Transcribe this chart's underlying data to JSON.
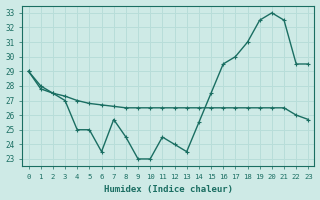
{
  "xlabel": "Humidex (Indice chaleur)",
  "background_color": "#ceeae6",
  "line_color": "#1a6e62",
  "grid_color": "#b8ddd9",
  "xlim": [
    -0.5,
    23.5
  ],
  "ylim": [
    22.5,
    33.5
  ],
  "yticks": [
    23,
    24,
    25,
    26,
    27,
    28,
    29,
    30,
    31,
    32,
    33
  ],
  "xticks": [
    0,
    1,
    2,
    3,
    4,
    5,
    6,
    7,
    8,
    9,
    10,
    11,
    12,
    13,
    14,
    15,
    16,
    17,
    18,
    19,
    20,
    21,
    22,
    23
  ],
  "series1": {
    "x": [
      0,
      1,
      2,
      3,
      4,
      5,
      6,
      7,
      8,
      9,
      10,
      11,
      12,
      13,
      14,
      15,
      16,
      17,
      18,
      19,
      20,
      21,
      22,
      23
    ],
    "y": [
      29,
      27.8,
      27.5,
      27.3,
      27.0,
      26.8,
      26.7,
      26.6,
      26.5,
      26.5,
      26.5,
      26.5,
      26.5,
      26.5,
      26.5,
      26.5,
      26.5,
      26.5,
      26.5,
      26.5,
      26.5,
      26.5,
      26.0,
      25.7
    ]
  },
  "series2": {
    "x": [
      0,
      1,
      2,
      3,
      4,
      5,
      6,
      7,
      8,
      9,
      10,
      11,
      12,
      13,
      14,
      15,
      16,
      17,
      18,
      19,
      20,
      21,
      22,
      23
    ],
    "y": [
      29,
      28,
      27.5,
      27,
      25,
      25,
      23.5,
      25.7,
      24.5,
      23,
      23,
      24.5,
      24,
      23.5,
      25.5,
      27.5,
      29.5,
      30.0,
      31.0,
      32.5,
      33.0,
      32.5,
      29.5,
      29.5
    ]
  }
}
